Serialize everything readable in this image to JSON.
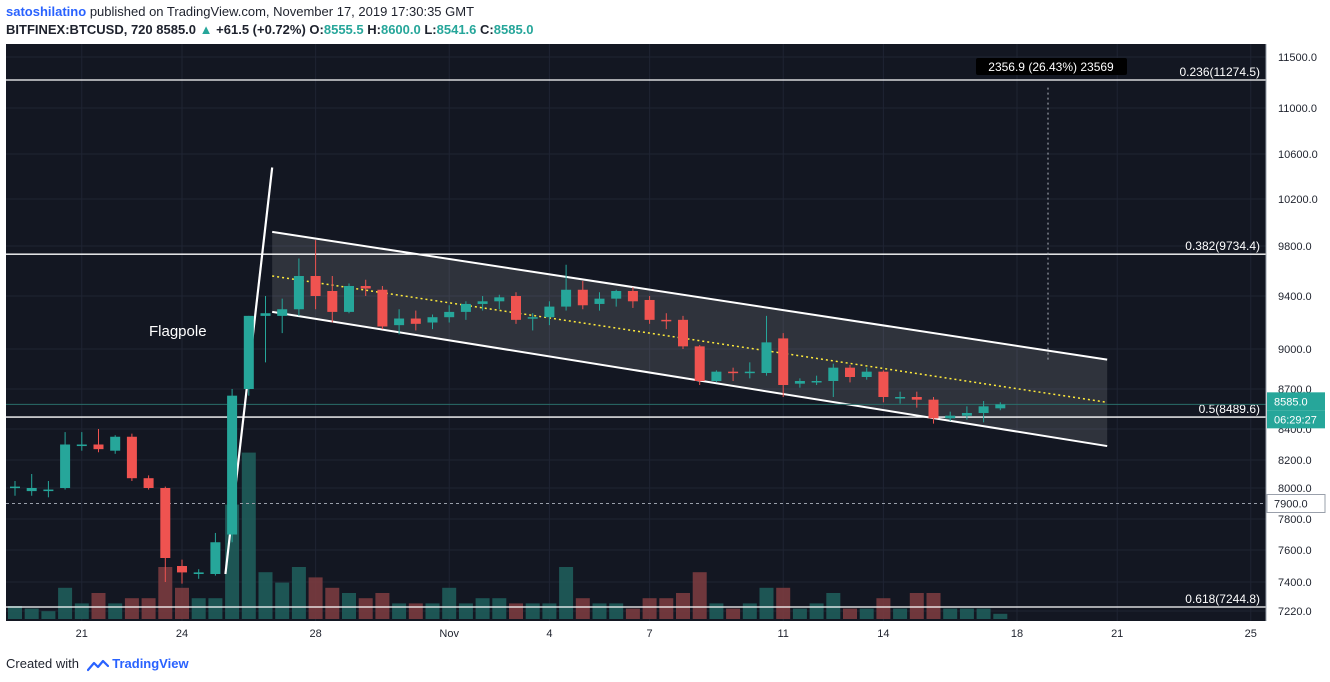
{
  "header": {
    "author": "satoshilatino",
    "published_text": "published on TradingView.com, November 17, 2019 17:30:35 GMT",
    "symbol": "BITFINEX:BTCUSD, 720",
    "last": "8585.0",
    "change": "+61.5 (+0.72%)",
    "o_label": "O:",
    "o": "8555.5",
    "h_label": "H:",
    "h": "8600.0",
    "l_label": "L:",
    "l": "8541.6",
    "c_label": "C:",
    "c": "8585.0"
  },
  "footer": {
    "created_with": "Created with",
    "brand": "TradingView"
  },
  "colors": {
    "background": "#131722",
    "up": "#26a69a",
    "down": "#ef5350",
    "grid": "#1f2433",
    "fib": "#ffffff",
    "midline": "#ffeb3b"
  },
  "chart_data": {
    "type": "candlestick",
    "annotations": {
      "flagpole_label": "Flagpole",
      "measure_label": "2356.9 (26.43%) 23569",
      "fib_levels": [
        {
          "label": "0.236(11274.5)",
          "value": 11274.5
        },
        {
          "label": "0.382(9734.4)",
          "value": 9734.4
        },
        {
          "label": "0.5(8489.6)",
          "value": 8489.6
        },
        {
          "label": "0.618(7244.8)",
          "value": 7244.8
        }
      ],
      "price_badge": "8585.0",
      "countdown_badge": "06:29:27",
      "crosshair_badge": "7900.0",
      "crosshair_price": 7900,
      "channel": {
        "upper": [
          [
            7.7,
            9920
          ],
          [
            32.7,
            8920
          ]
        ],
        "lower": [
          [
            7.7,
            9280
          ],
          [
            32.7,
            8290
          ]
        ],
        "mid": [
          [
            7.7,
            9560
          ],
          [
            32.7,
            8600
          ]
        ]
      },
      "flagpole": [
        [
          6.3,
          7450
        ],
        [
          7.7,
          10480
        ]
      ]
    },
    "x_ticks": [
      {
        "label": "21",
        "x": 2.0
      },
      {
        "label": "24",
        "x": 5.0
      },
      {
        "label": "28",
        "x": 9.0
      },
      {
        "label": "Nov",
        "x": 13.0
      },
      {
        "label": "4",
        "x": 16.0
      },
      {
        "label": "7",
        "x": 19.0
      },
      {
        "label": "11",
        "x": 23.0
      },
      {
        "label": "14",
        "x": 26.0
      },
      {
        "label": "18",
        "x": 30.0
      },
      {
        "label": "21",
        "x": 33.0
      },
      {
        "label": "25",
        "x": 37.0
      }
    ],
    "y_ticks": [
      "11500.0",
      "11000.0",
      "10600.0",
      "10200.0",
      "9800.0",
      "9400.0",
      "9000.0",
      "8700.0",
      "8400.0",
      "8200.0",
      "8000.0",
      "7800.0",
      "7600.0",
      "7400.0",
      "7220.0"
    ],
    "y_tick_values": [
      11500,
      11000,
      10600,
      10200,
      9800,
      9400,
      9000,
      8700,
      8400,
      8200,
      8000,
      7800,
      7600,
      7400,
      7220
    ],
    "candles": [
      {
        "x": 0.0,
        "o": 8000,
        "h": 8050,
        "l": 7950,
        "c": 8010,
        "v": 2.5
      },
      {
        "x": 0.5,
        "o": 7980,
        "h": 8100,
        "l": 7950,
        "c": 8000,
        "v": 2
      },
      {
        "x": 1.0,
        "o": 7980,
        "h": 8050,
        "l": 7940,
        "c": 7990,
        "v": 1.5
      },
      {
        "x": 1.5,
        "o": 8000,
        "h": 8380,
        "l": 7990,
        "c": 8300,
        "v": 6
      },
      {
        "x": 2.0,
        "o": 8290,
        "h": 8380,
        "l": 8260,
        "c": 8300,
        "v": 3
      },
      {
        "x": 2.5,
        "o": 8300,
        "h": 8400,
        "l": 8250,
        "c": 8270,
        "v": 5
      },
      {
        "x": 3.0,
        "o": 8260,
        "h": 8360,
        "l": 8240,
        "c": 8350,
        "v": 3
      },
      {
        "x": 3.5,
        "o": 8350,
        "h": 8370,
        "l": 8050,
        "c": 8070,
        "v": 4
      },
      {
        "x": 4.0,
        "o": 8070,
        "h": 8090,
        "l": 7990,
        "c": 8000,
        "v": 4
      },
      {
        "x": 4.5,
        "o": 8000,
        "h": 8010,
        "l": 7400,
        "c": 7550,
        "v": 10
      },
      {
        "x": 5.0,
        "o": 7500,
        "h": 7540,
        "l": 7390,
        "c": 7460,
        "v": 6
      },
      {
        "x": 5.5,
        "o": 7450,
        "h": 7480,
        "l": 7420,
        "c": 7460,
        "v": 4
      },
      {
        "x": 6.0,
        "o": 7450,
        "h": 7710,
        "l": 7440,
        "c": 7650,
        "v": 4
      },
      {
        "x": 6.5,
        "o": 7700,
        "h": 8700,
        "l": 7650,
        "c": 8650,
        "v": 22
      },
      {
        "x": 7.0,
        "o": 8700,
        "h": 9250,
        "l": 8650,
        "c": 9250,
        "v": 32
      },
      {
        "x": 7.5,
        "o": 9250,
        "h": 9400,
        "l": 8900,
        "c": 9270,
        "v": 9
      },
      {
        "x": 8.0,
        "o": 9250,
        "h": 9380,
        "l": 9120,
        "c": 9300,
        "v": 7
      },
      {
        "x": 8.5,
        "o": 9300,
        "h": 9700,
        "l": 9250,
        "c": 9560,
        "v": 10
      },
      {
        "x": 9.0,
        "o": 9560,
        "h": 9850,
        "l": 9300,
        "c": 9400,
        "v": 8
      },
      {
        "x": 9.5,
        "o": 9440,
        "h": 9560,
        "l": 9200,
        "c": 9280,
        "v": 6
      },
      {
        "x": 10.0,
        "o": 9280,
        "h": 9500,
        "l": 9270,
        "c": 9480,
        "v": 5
      },
      {
        "x": 10.5,
        "o": 9480,
        "h": 9530,
        "l": 9400,
        "c": 9460,
        "v": 4
      },
      {
        "x": 11.0,
        "o": 9450,
        "h": 9480,
        "l": 9150,
        "c": 9170,
        "v": 5
      },
      {
        "x": 11.5,
        "o": 9180,
        "h": 9300,
        "l": 9110,
        "c": 9230,
        "v": 3
      },
      {
        "x": 12.0,
        "o": 9230,
        "h": 9290,
        "l": 9140,
        "c": 9190,
        "v": 3
      },
      {
        "x": 12.5,
        "o": 9200,
        "h": 9260,
        "l": 9150,
        "c": 9240,
        "v": 3
      },
      {
        "x": 13.0,
        "o": 9240,
        "h": 9330,
        "l": 9200,
        "c": 9280,
        "v": 6
      },
      {
        "x": 13.5,
        "o": 9280,
        "h": 9360,
        "l": 9220,
        "c": 9340,
        "v": 3
      },
      {
        "x": 14.0,
        "o": 9340,
        "h": 9400,
        "l": 9290,
        "c": 9360,
        "v": 4
      },
      {
        "x": 14.5,
        "o": 9360,
        "h": 9410,
        "l": 9300,
        "c": 9390,
        "v": 4
      },
      {
        "x": 15.0,
        "o": 9400,
        "h": 9430,
        "l": 9190,
        "c": 9220,
        "v": 3
      },
      {
        "x": 15.5,
        "o": 9230,
        "h": 9270,
        "l": 9140,
        "c": 9240,
        "v": 3
      },
      {
        "x": 16.0,
        "o": 9240,
        "h": 9360,
        "l": 9180,
        "c": 9320,
        "v": 3
      },
      {
        "x": 16.5,
        "o": 9320,
        "h": 9650,
        "l": 9290,
        "c": 9450,
        "v": 10
      },
      {
        "x": 17.0,
        "o": 9450,
        "h": 9520,
        "l": 9300,
        "c": 9330,
        "v": 4
      },
      {
        "x": 17.5,
        "o": 9340,
        "h": 9430,
        "l": 9290,
        "c": 9380,
        "v": 3
      },
      {
        "x": 18.0,
        "o": 9380,
        "h": 9450,
        "l": 9320,
        "c": 9440,
        "v": 3
      },
      {
        "x": 18.5,
        "o": 9440,
        "h": 9470,
        "l": 9310,
        "c": 9360,
        "v": 2
      },
      {
        "x": 19.0,
        "o": 9370,
        "h": 9400,
        "l": 9190,
        "c": 9220,
        "v": 4
      },
      {
        "x": 19.5,
        "o": 9220,
        "h": 9270,
        "l": 9150,
        "c": 9210,
        "v": 4
      },
      {
        "x": 20.0,
        "o": 9220,
        "h": 9250,
        "l": 9000,
        "c": 9020,
        "v": 5
      },
      {
        "x": 20.5,
        "o": 9020,
        "h": 9030,
        "l": 8730,
        "c": 8760,
        "v": 9
      },
      {
        "x": 21.0,
        "o": 8760,
        "h": 8840,
        "l": 8750,
        "c": 8830,
        "v": 3
      },
      {
        "x": 21.5,
        "o": 8830,
        "h": 8860,
        "l": 8760,
        "c": 8820,
        "v": 2
      },
      {
        "x": 22.0,
        "o": 8820,
        "h": 8900,
        "l": 8780,
        "c": 8830,
        "v": 3
      },
      {
        "x": 22.5,
        "o": 8820,
        "h": 9250,
        "l": 8800,
        "c": 9050,
        "v": 6
      },
      {
        "x": 23.0,
        "o": 9080,
        "h": 9120,
        "l": 8640,
        "c": 8730,
        "v": 6
      },
      {
        "x": 23.5,
        "o": 8740,
        "h": 8780,
        "l": 8710,
        "c": 8760,
        "v": 2
      },
      {
        "x": 24.0,
        "o": 8760,
        "h": 8800,
        "l": 8730,
        "c": 8760,
        "v": 3
      },
      {
        "x": 24.5,
        "o": 8760,
        "h": 8890,
        "l": 8640,
        "c": 8860,
        "v": 5
      },
      {
        "x": 25.0,
        "o": 8860,
        "h": 8880,
        "l": 8750,
        "c": 8790,
        "v": 2
      },
      {
        "x": 25.5,
        "o": 8790,
        "h": 8860,
        "l": 8770,
        "c": 8830,
        "v": 2
      },
      {
        "x": 26.0,
        "o": 8830,
        "h": 8840,
        "l": 8600,
        "c": 8640,
        "v": 4
      },
      {
        "x": 26.5,
        "o": 8640,
        "h": 8680,
        "l": 8590,
        "c": 8640,
        "v": 2
      },
      {
        "x": 27.0,
        "o": 8640,
        "h": 8680,
        "l": 8560,
        "c": 8620,
        "v": 5
      },
      {
        "x": 27.5,
        "o": 8620,
        "h": 8640,
        "l": 8440,
        "c": 8480,
        "v": 5
      },
      {
        "x": 28.0,
        "o": 8480,
        "h": 8530,
        "l": 8460,
        "c": 8500,
        "v": 2
      },
      {
        "x": 28.5,
        "o": 8500,
        "h": 8570,
        "l": 8470,
        "c": 8520,
        "v": 2
      },
      {
        "x": 29.0,
        "o": 8520,
        "h": 8610,
        "l": 8450,
        "c": 8570,
        "v": 2
      },
      {
        "x": 29.5,
        "o": 8555,
        "h": 8600,
        "l": 8541,
        "c": 8585,
        "v": 1
      }
    ]
  }
}
